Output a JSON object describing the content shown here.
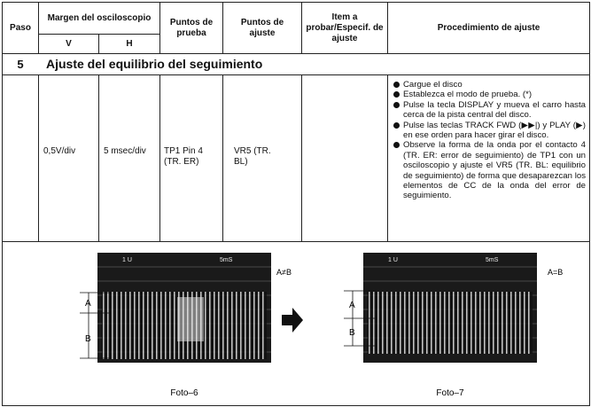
{
  "header": {
    "paso": "Paso",
    "margen": "Margen del osciloscopio",
    "v": "V",
    "h": "H",
    "puntos_prueba": "Puntos de prueba",
    "puntos_ajuste": "Puntos de ajuste",
    "item": "Item a probar/Especif. de ajuste",
    "procedimiento": "Procedimiento de ajuste"
  },
  "section": {
    "number": "5",
    "title": "Ajuste del equilibrio del seguimiento"
  },
  "row": {
    "v": "0,5V/div",
    "h": "5 msec/div",
    "puntos_prueba": "TP1 Pin 4 (TR. ER)",
    "puntos_ajuste": "VR5 (TR. BL)",
    "steps": [
      "Cargue el disco",
      "Establezca el modo de prueba. (*)",
      "Pulse la tecla DISPLAY  y mueva el carro hasta cerca de la pista central del disco.",
      "Pulse las teclas TRACK FWD (▶▶|) y PLAY (▶) en ese orden para hacer girar el disco.",
      "Observe la forma de la onda por el contacto 4 (TR. ER: error de seguimiento) de TP1 con un osciloscopio y ajuste el VR5 (TR. BL: equilibrio de seguimiento) de forma que desaparezcan los elementos de CC de la onda del error de seguimiento."
    ]
  },
  "photos": [
    {
      "scale_v": "1 U",
      "scale_h": "5mS",
      "a": "A",
      "b": "B",
      "condition": "A≠B",
      "caption": "Foto–6"
    },
    {
      "scale_v": "1 U",
      "scale_h": "5mS",
      "a": "A",
      "b": "B",
      "condition": "A=B",
      "caption": "Foto–7"
    }
  ]
}
